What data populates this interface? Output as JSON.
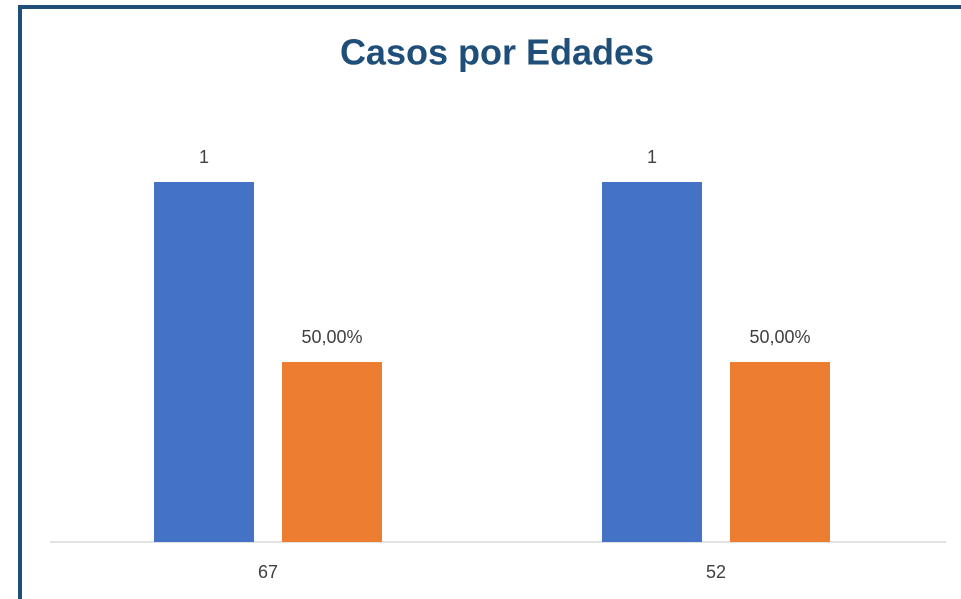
{
  "chart_data": {
    "type": "bar",
    "title": "Casos por Edades",
    "categories": [
      "67",
      "52"
    ],
    "series": [
      {
        "color": "#4472c4",
        "values": [
          1,
          1
        ]
      },
      {
        "color": "#ed7d31",
        "values": [
          50,
          50
        ],
        "value_labels": [
          "50,00%",
          "50,00%"
        ],
        "axis": "y2"
      }
    ],
    "ylim": [
      0,
      1
    ],
    "y2lim": [
      0,
      100
    ],
    "grid": false
  }
}
